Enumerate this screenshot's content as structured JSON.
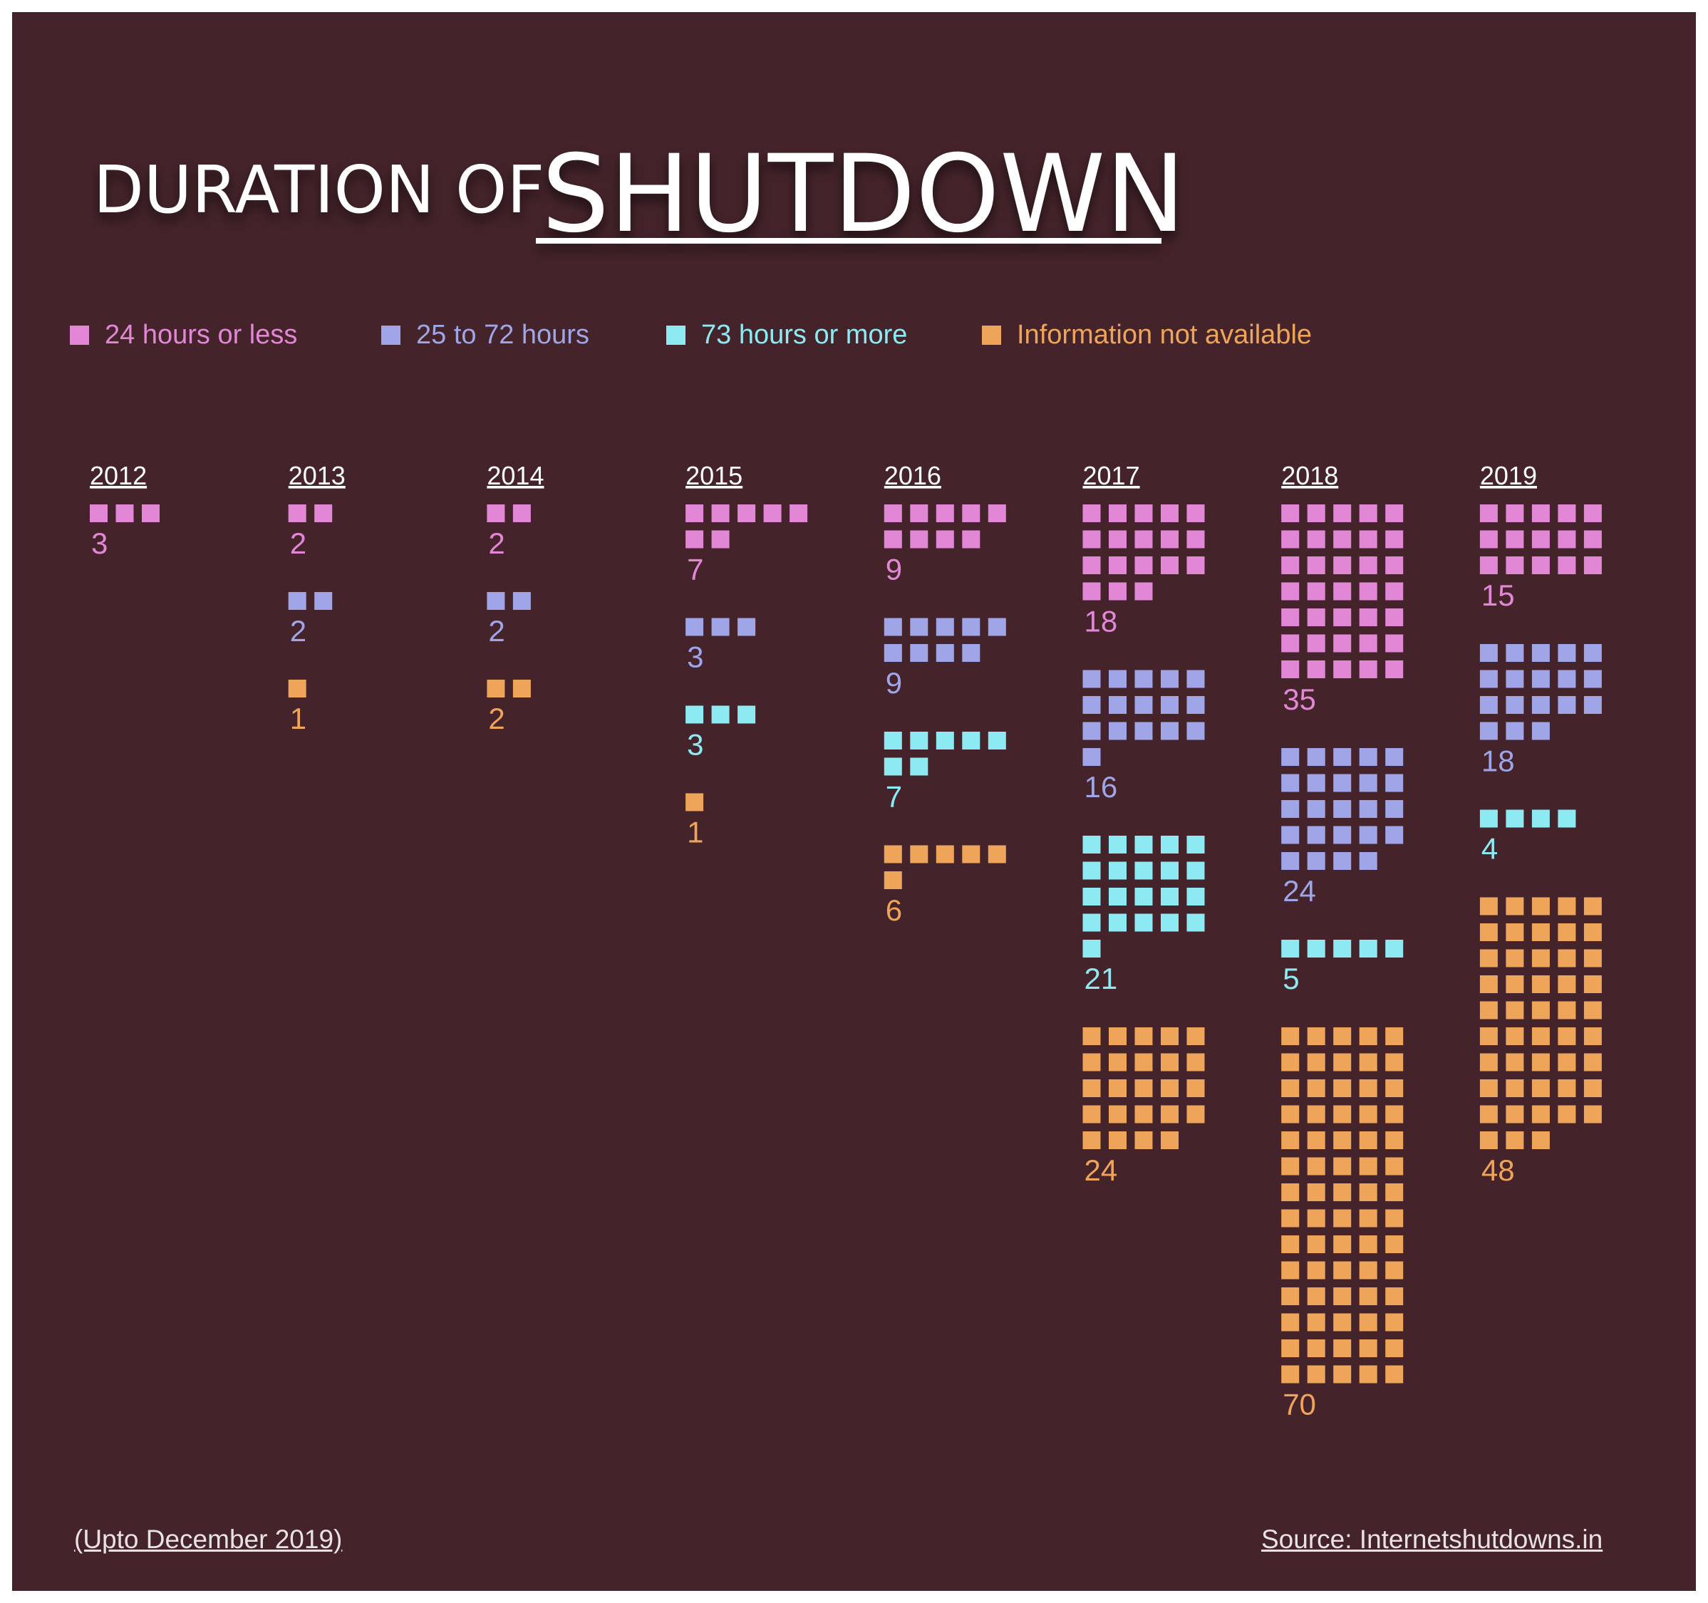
{
  "title": {
    "prefix": "DURATION OF",
    "main": "SHUTDOWN"
  },
  "legend": [
    {
      "label": "24 hours or less",
      "color": "#e287d6",
      "icon": "square-icon"
    },
    {
      "label": "25 to 72 hours",
      "color": "#9fa5e6",
      "icon": "square-icon"
    },
    {
      "label": "73 hours or more",
      "color": "#8eeaf2",
      "icon": "square-icon"
    },
    {
      "label": "Information not available",
      "color": "#eea55a",
      "icon": "square-icon"
    }
  ],
  "chart_data": {
    "type": "unit-chart",
    "x": [
      "2012",
      "2013",
      "2014",
      "2015",
      "2016",
      "2017",
      "2018",
      "2019"
    ],
    "series": [
      {
        "name": "24 hours or less",
        "color": "#e287d6",
        "values": [
          3,
          2,
          2,
          7,
          9,
          18,
          35,
          15
        ]
      },
      {
        "name": "25 to 72 hours",
        "color": "#9fa5e6",
        "values": [
          0,
          2,
          2,
          3,
          9,
          16,
          24,
          18
        ]
      },
      {
        "name": "73 hours or more",
        "color": "#8eeaf2",
        "values": [
          0,
          0,
          0,
          3,
          7,
          21,
          5,
          4
        ]
      },
      {
        "name": "Information not available",
        "color": "#eea55a",
        "values": [
          0,
          1,
          2,
          1,
          6,
          24,
          70,
          48
        ]
      }
    ],
    "units_per_row": 5,
    "legend_position": "top"
  },
  "footer": {
    "note": "(Upto December 2019)",
    "source": "Source: Internetshutdowns.in"
  },
  "colors": {
    "background": "#44242a",
    "text": "#ffffff"
  }
}
